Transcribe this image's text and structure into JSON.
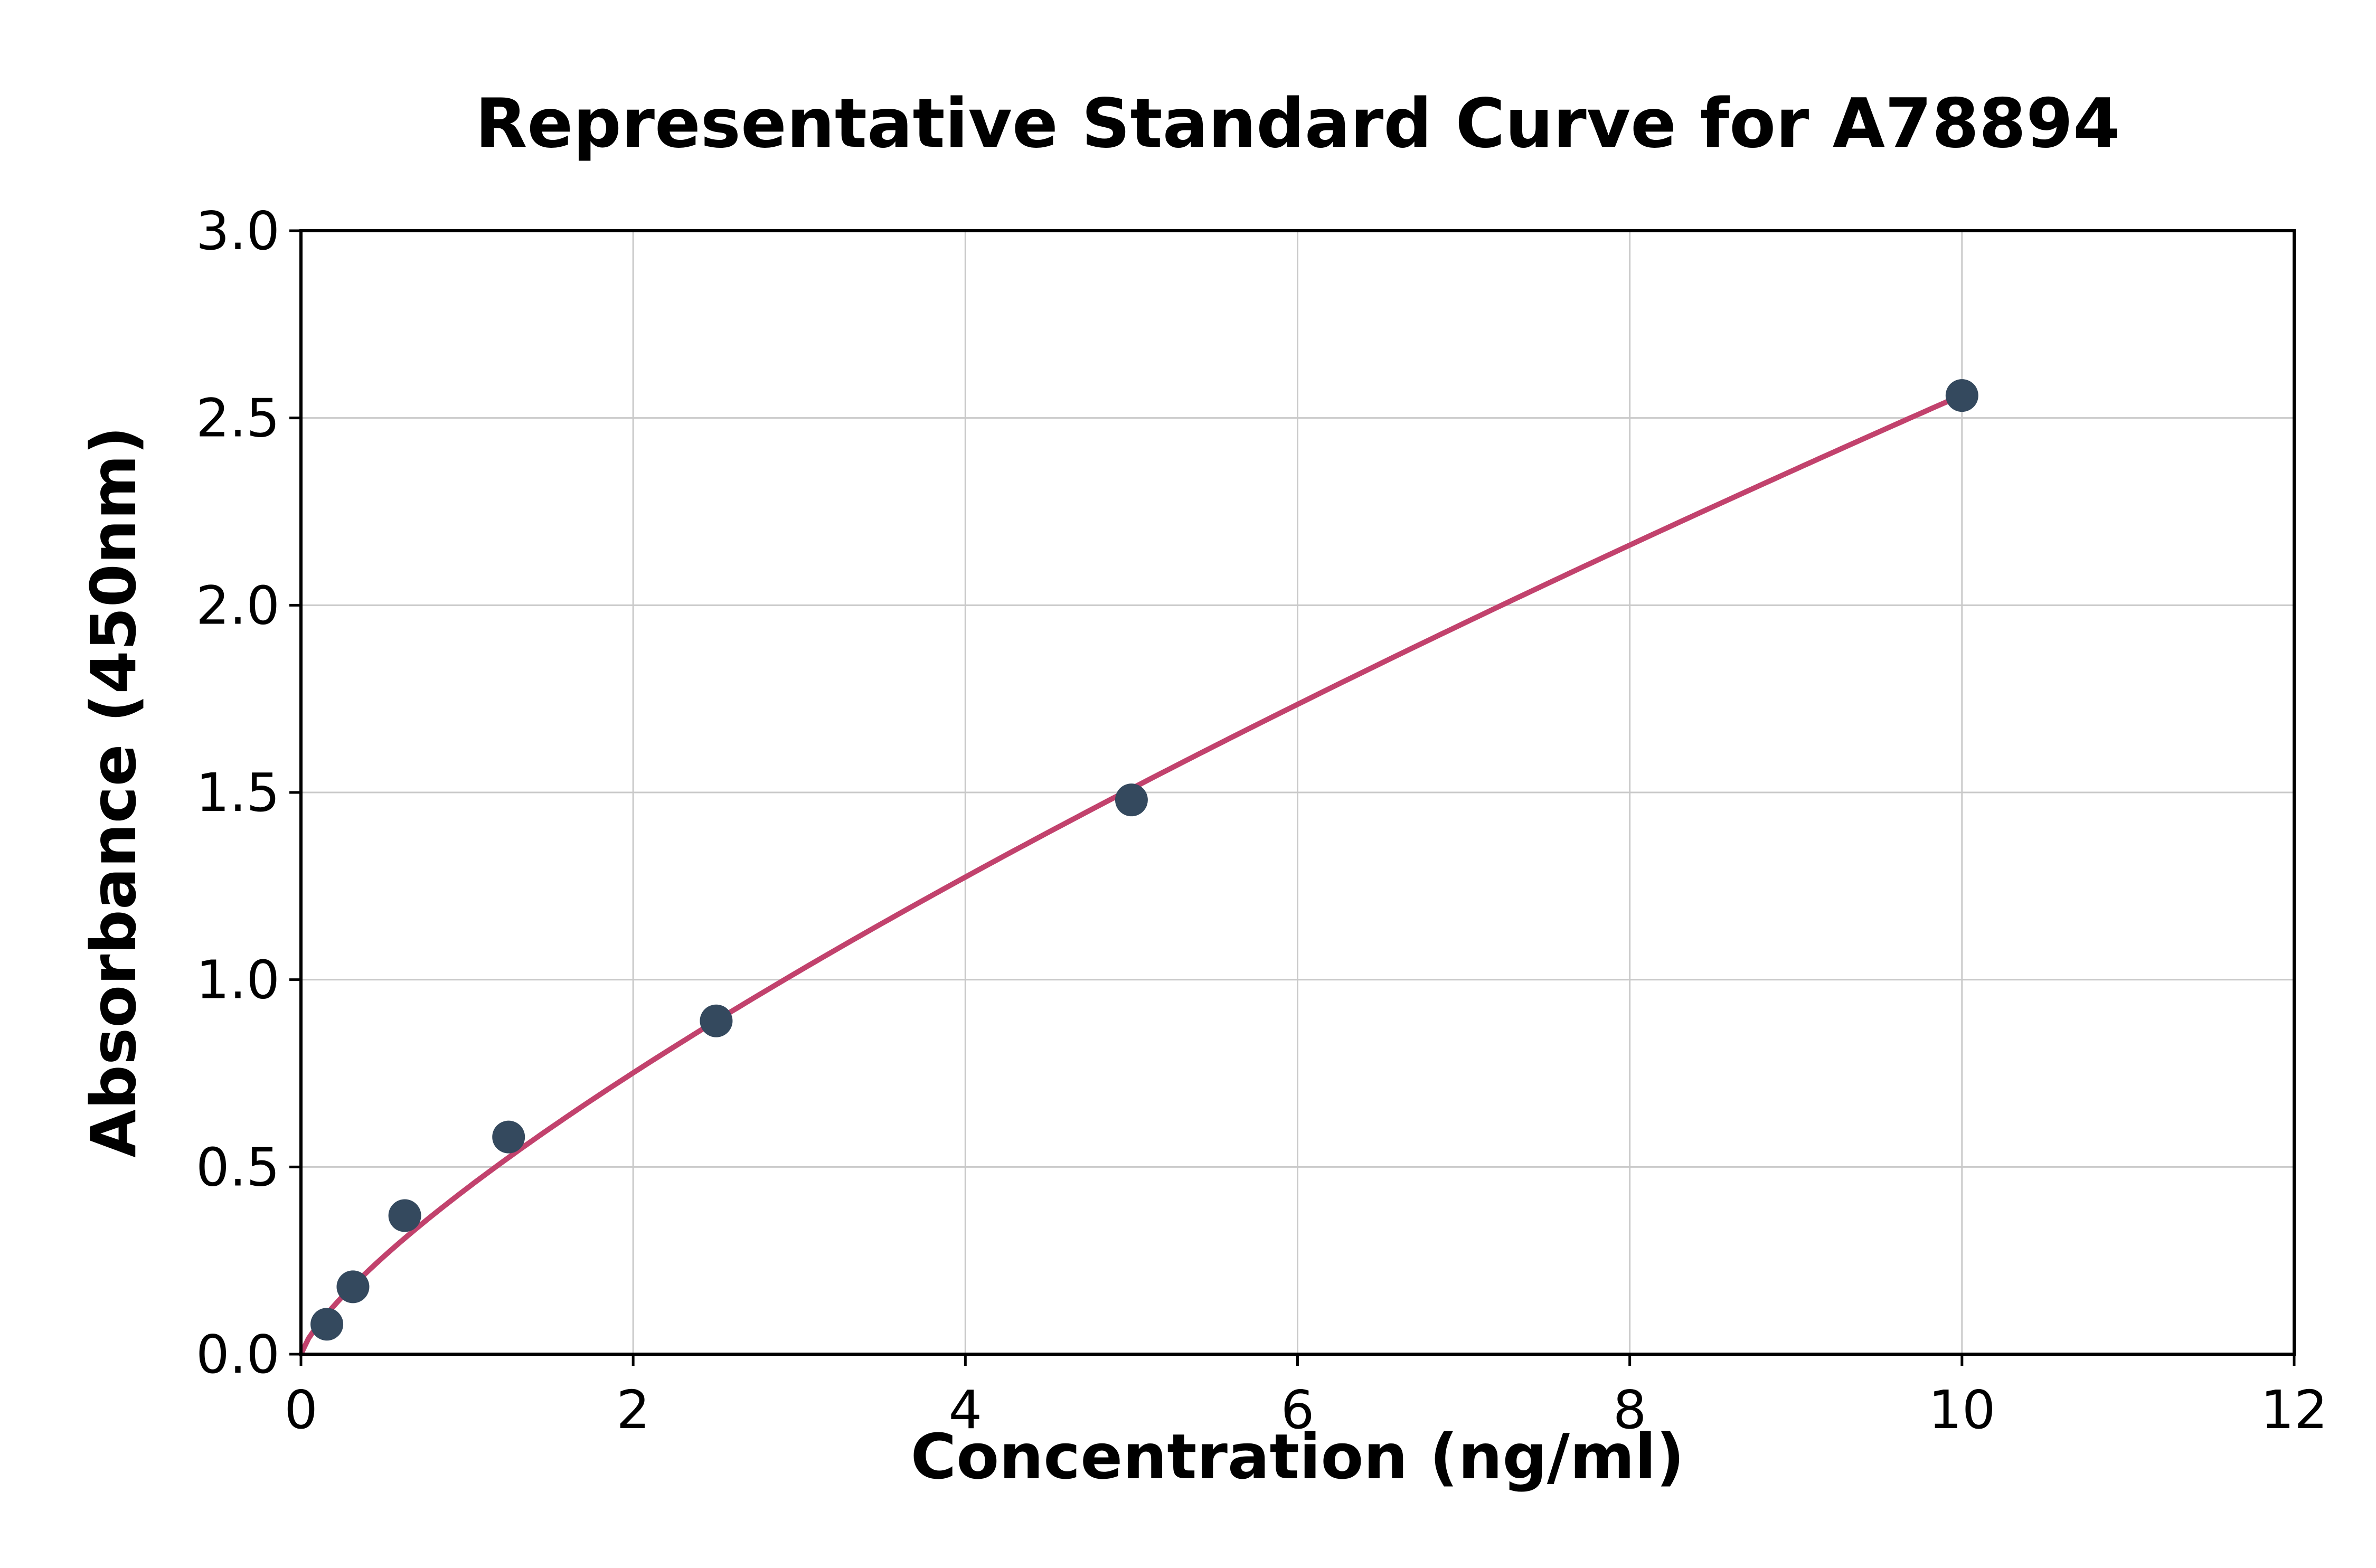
{
  "chart_data": {
    "type": "scatter",
    "title": "Representative Standard Curve for A78894",
    "xlabel": "Concentration (ng/ml)",
    "ylabel": "Absorbance (450nm)",
    "xlim": [
      0,
      12
    ],
    "ylim": [
      0,
      3
    ],
    "xticks": [
      0,
      2,
      4,
      6,
      8,
      10,
      12
    ],
    "xtick_labels": [
      "0",
      "2",
      "4",
      "6",
      "8",
      "10",
      "12"
    ],
    "yticks": [
      0,
      0.5,
      1,
      1.5,
      2,
      2.5,
      3
    ],
    "ytick_labels": [
      "0.0",
      "0.5",
      "1.0",
      "1.5",
      "2.0",
      "2.5",
      "3.0"
    ],
    "grid": true,
    "legend": "none",
    "points": {
      "x": [
        0.156,
        0.313,
        0.625,
        1.25,
        2.5,
        5,
        10
      ],
      "y": [
        0.08,
        0.18,
        0.37,
        0.58,
        0.89,
        1.48,
        2.56
      ]
    },
    "fit_curve": {
      "type": "power",
      "a": 0.443,
      "b": 0.762,
      "x_range": [
        0,
        10
      ]
    },
    "colors": {
      "point": "#34495e",
      "curve": "#c2426d",
      "grid": "#c9c9c9",
      "axis": "#000000",
      "background": "#ffffff"
    }
  }
}
